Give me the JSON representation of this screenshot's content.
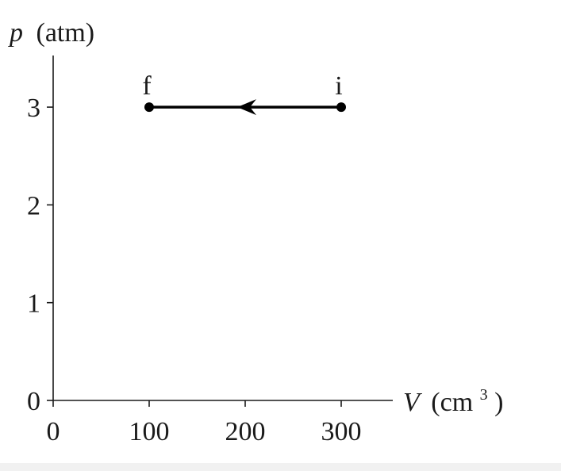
{
  "chart_data": {
    "type": "line",
    "ylabel_var": "p",
    "ylabel_unit": "(atm)",
    "xlabel_var": "V",
    "xlabel_unit": "(cm",
    "xlabel_exp": "3",
    "xlabel_close": ")",
    "xlim": [
      0,
      350
    ],
    "ylim": [
      0,
      3.5
    ],
    "x_ticks": [
      0,
      100,
      200,
      300
    ],
    "x_tick_labels": [
      "0",
      "100",
      "200",
      "300"
    ],
    "y_ticks": [
      0,
      1,
      2,
      3
    ],
    "y_tick_labels": [
      "0",
      "1",
      "2",
      "3"
    ],
    "grid": false,
    "points": [
      {
        "label": "i",
        "x": 300,
        "y": 3
      },
      {
        "label": "f",
        "x": 100,
        "y": 3
      }
    ],
    "arrow_direction": "from i to f"
  }
}
